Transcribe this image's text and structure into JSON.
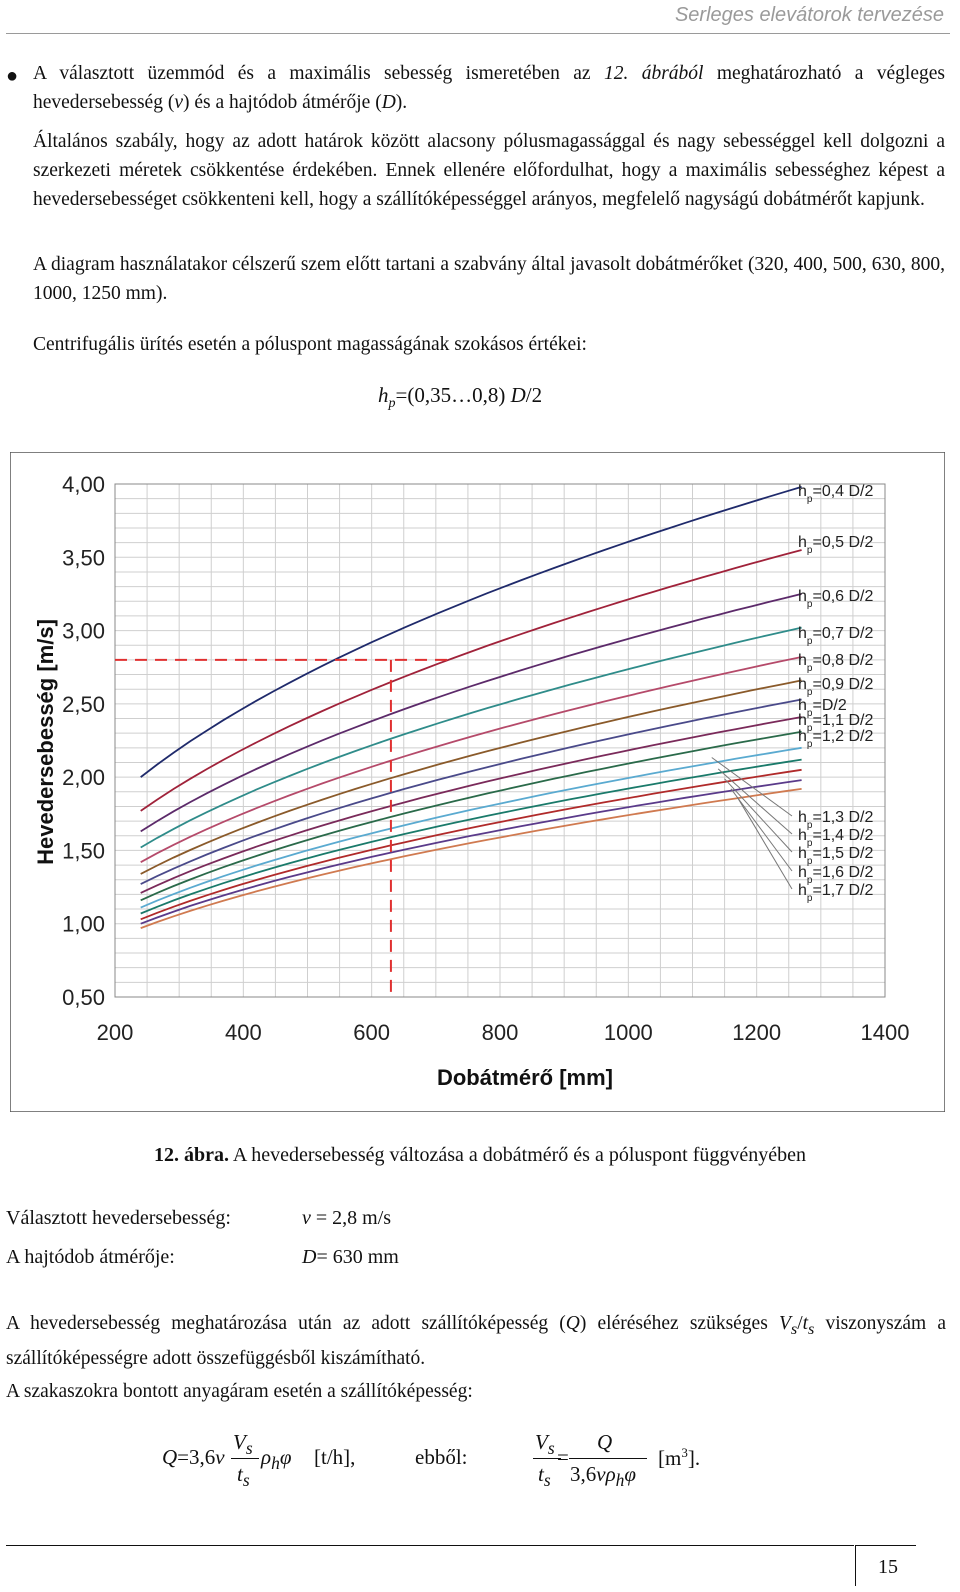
{
  "header": {
    "title": "Serleges elevátorok tervezése"
  },
  "paragraphs": {
    "p1_a": "A választott üzemmód és a maximális sebesség ismeretében az ",
    "p1_fig": "12. ábrából",
    "p1_b": " meghatározható a végleges hevedersebesség (",
    "p1_v": "v",
    "p1_c": ") és a hajtódob átmérője  (",
    "p1_D": "D",
    "p1_d": ").",
    "p2": "Általános szabály, hogy az adott határok között alacsony pólusmagassággal és nagy sebességgel kell dolgozni a szerkezeti méretek csökkentése érdekében. Ennek ellenére előfordulhat, hogy a maximális sebességhez képest a hevedersebességet csökkenteni kell, hogy a szállítóképességgel arányos, megfelelő nagyságú dobátmérőt kapjunk.",
    "p3": "A diagram használatakor célszerű szem előtt tartani a szabvány által javasolt dobátmérőket (320, 400, 500, 630, 800, 1000, 1250 mm).",
    "p4": "Centrifugális ürítés esetén a póluspont magasságának szokásos értékei:",
    "formula_h": "h",
    "formula_p": "p",
    "formula_rest": "=(0,35…0,8) ",
    "formula_D": "D",
    "formula_end": "/2"
  },
  "chart_data": {
    "type": "line",
    "xlabel": "Dobátmérő [mm]",
    "ylabel": "Hevedersebesség [m/s]",
    "xlim": [
      200,
      1400
    ],
    "ylim": [
      0.5,
      4.0
    ],
    "x_ticks": [
      "200",
      "400",
      "600",
      "800",
      "1000",
      "1200",
      "1400"
    ],
    "y_ticks": [
      "0,50",
      "1,00",
      "1,50",
      "2,00",
      "2,50",
      "3,00",
      "3,50",
      "4,00"
    ],
    "grid": true,
    "x": [
      240,
      1270
    ],
    "series": [
      {
        "name": "hp=0,4 D/2",
        "values": [
          2.0,
          3.98
        ],
        "color": "#1f2a6b"
      },
      {
        "name": "hp=0,5 D/2",
        "values": [
          1.77,
          3.55
        ],
        "color": "#a0223a"
      },
      {
        "name": "hp=0,6 D/2",
        "values": [
          1.63,
          3.25
        ],
        "color": "#5c2a6a"
      },
      {
        "name": "hp=0,7 D/2",
        "values": [
          1.52,
          3.02
        ],
        "color": "#2f8c8a"
      },
      {
        "name": "hp=0,8 D/2",
        "values": [
          1.42,
          2.82
        ],
        "color": "#b54a6a"
      },
      {
        "name": "hp=0,9 D/2",
        "values": [
          1.34,
          2.66
        ],
        "color": "#8a5a2a"
      },
      {
        "name": "hp=D/2",
        "values": [
          1.27,
          2.53
        ],
        "color": "#4a4a8a"
      },
      {
        "name": "hp=1,1 D/2",
        "values": [
          1.21,
          2.41
        ],
        "color": "#7a2a5a"
      },
      {
        "name": "hp=1,2 D/2",
        "values": [
          1.16,
          2.31
        ],
        "color": "#2a6a4a"
      },
      {
        "name": "hp=1,3 D/2",
        "values": [
          1.11,
          2.2
        ],
        "color": "#5aaad0"
      },
      {
        "name": "hp=1,4 D/2",
        "values": [
          1.07,
          2.12
        ],
        "color": "#1a7a6a"
      },
      {
        "name": "hp=1,5 D/2",
        "values": [
          1.03,
          2.05
        ],
        "color": "#b02a2a"
      },
      {
        "name": "hp=1,6 D/2",
        "values": [
          1.0,
          1.98
        ],
        "color": "#5a3a8a"
      },
      {
        "name": "hp=1,7 D/2",
        "values": [
          0.97,
          1.92
        ],
        "color": "#d07a50"
      }
    ],
    "annotation": {
      "x": 630,
      "y": 2.8,
      "style": "dashed",
      "color": "#e03030"
    }
  },
  "caption": {
    "label": "12. ábra.",
    "text": " A hevedersebesség változása a dobátmérő és a póluspont függvényében"
  },
  "definitions": [
    {
      "label": "Választott hevedersebesség:",
      "sym": "v",
      "val": " = 2,8 m/s"
    },
    {
      "label": "A hajtódob átmérője:",
      "sym": "D",
      "val": "= 630 mm"
    }
  ],
  "para5": {
    "a": "A hevedersebesség meghatározása után az adott szállítóképesség (",
    "Q": "Q",
    "b": ") eléréséhez szükséges ",
    "V": "V",
    "s1": "s",
    "slash": "/",
    "t": "t",
    "s2": "s",
    "c": " viszonyszám a szállítóképességre adott összefüggésből kiszámítható."
  },
  "para6": "A szakaszokra bontott anyagáram esetén a szállítóképesség:",
  "equation1": {
    "lhs": "Q",
    "eq": "=3,6",
    "v": "v",
    "num": "V",
    "num_sub": "s",
    "den": "t",
    "den_sub": "s",
    "rho": "ρ",
    "rho_sub": "h",
    "phi": "φ",
    "unit": "[t/h],"
  },
  "from_label": "ebből:",
  "equation2": {
    "num": "V",
    "num_sub": "s",
    "den": "t",
    "den_sub": "s",
    "eq": "=",
    "rnum": "Q",
    "rden_a": "3,6",
    "rden_v": "v",
    "rden_rho": "ρ",
    "rden_sub": "h",
    "rden_phi": "φ",
    "unit": "[m",
    "unit_sup": "3",
    "unit_end": "]."
  },
  "page_number": "15"
}
